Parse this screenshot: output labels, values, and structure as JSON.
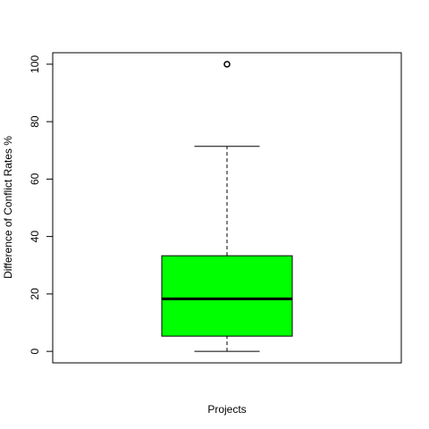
{
  "chart_data": {
    "type": "box",
    "xlabel": "Projects",
    "ylabel": "Difference of Conflict Rates %",
    "ylim": [
      -4,
      104
    ],
    "yticks": [
      0,
      20,
      40,
      60,
      80,
      100
    ],
    "ytick_labels": [
      "0",
      "20",
      "40",
      "60",
      "80",
      "100"
    ],
    "grid": false,
    "box": {
      "whisker_low": 0,
      "q1": 5.3,
      "median": 18.3,
      "q3": 33.3,
      "whisker_high": 71.4,
      "outliers": [
        100
      ]
    },
    "colors": {
      "box_fill": "#00ff00",
      "stroke": "#000000"
    }
  }
}
